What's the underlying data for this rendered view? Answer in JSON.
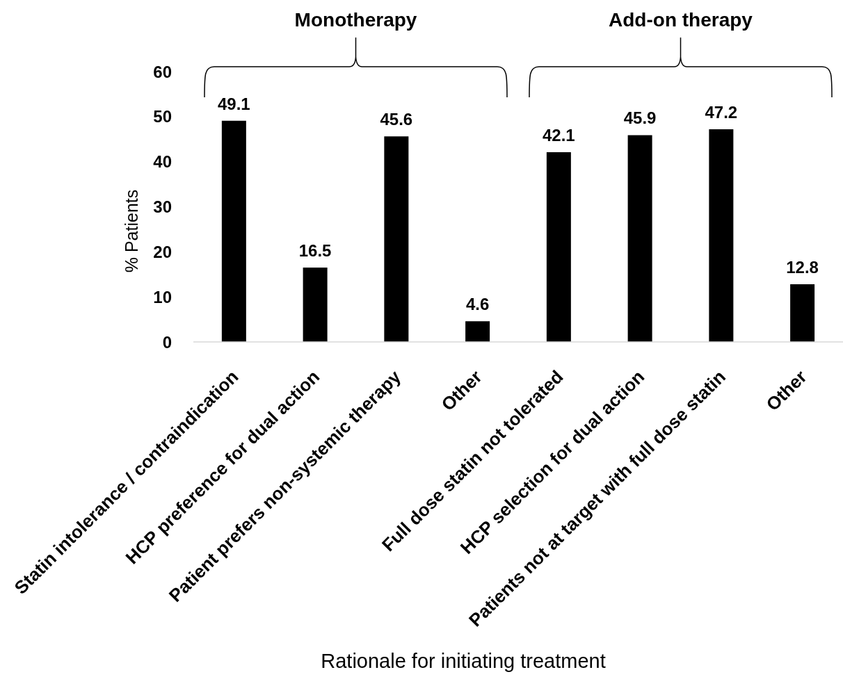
{
  "chart_data": {
    "type": "bar",
    "xlabel": "Rationale for initiating treatment",
    "ylabel": "% Patients",
    "annotations": [
      "Monotherapy",
      "Add-on therapy"
    ],
    "categories": [
      "Statin intolerance / contraindication",
      "HCP preference for dual action",
      "Patient prefers non-systemic therapy",
      "Other",
      "Full dose statin not tolerated",
      "HCP selection for dual action",
      "Patients not at target with full dose statin",
      "Other"
    ],
    "values": [
      49.1,
      16.5,
      45.6,
      4.6,
      42.1,
      45.9,
      47.2,
      12.8
    ],
    "color": "#000000",
    "ylim": [
      0,
      60
    ],
    "yticks": [
      0,
      10,
      20,
      30,
      40,
      50,
      60
    ],
    "data_labels": true
  }
}
